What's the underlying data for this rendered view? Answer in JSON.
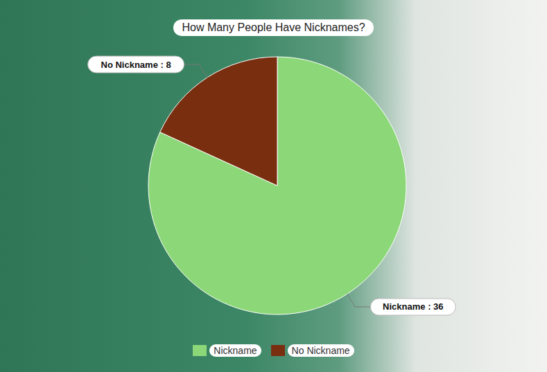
{
  "chart_data": {
    "type": "pie",
    "title": "How Many People Have Nicknames?",
    "categories": [
      "Nickname",
      "No Nickname"
    ],
    "values": [
      36,
      8
    ],
    "value_labels": [
      "Nickname : 36",
      "No Nickname : 8"
    ],
    "colors": [
      "#8cd878",
      "#7a2e10"
    ],
    "data_labels": true,
    "legend": "bottom"
  }
}
